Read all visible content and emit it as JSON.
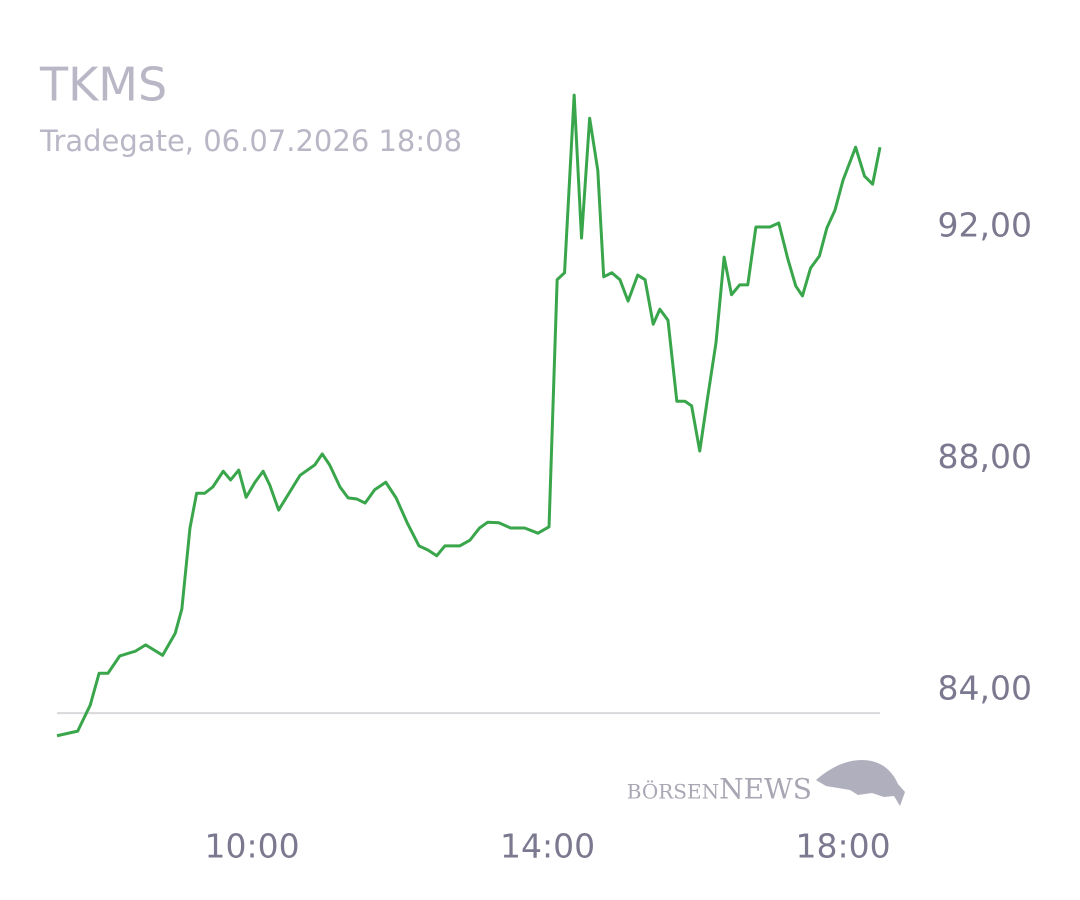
{
  "chart_data": {
    "type": "line",
    "title": "TKMS",
    "subtitle": "Tradegate, 06.07.2026 18:08",
    "watermark": "börsenNEWS",
    "color": "#3aa64c",
    "x": [
      7.36,
      7.64,
      7.81,
      7.93,
      8.05,
      8.21,
      8.42,
      8.56,
      8.79,
      8.96,
      9.05,
      9.16,
      9.25,
      9.36,
      9.47,
      9.61,
      9.71,
      9.82,
      9.92,
      10.04,
      10.15,
      10.24,
      10.36,
      10.5,
      10.65,
      10.85,
      10.95,
      11.05,
      11.19,
      11.3,
      11.42,
      11.53,
      11.66,
      11.81,
      11.95,
      12.1,
      12.26,
      12.38,
      12.5,
      12.61,
      12.81,
      12.95,
      13.08,
      13.19,
      13.34,
      13.5,
      13.69,
      13.87,
      14.02,
      14.13,
      14.23,
      14.36,
      14.46,
      14.57,
      14.68,
      14.76,
      14.87,
      14.98,
      15.09,
      15.22,
      15.32,
      15.43,
      15.52,
      15.63,
      15.75,
      15.86,
      15.95,
      16.06,
      16.17,
      16.28,
      16.39,
      16.49,
      16.6,
      16.71,
      16.82,
      17.01,
      17.13,
      17.25,
      17.36,
      17.45,
      17.56,
      17.68,
      17.78,
      17.89,
      18.0,
      18.17,
      18.29,
      18.4,
      18.5
    ],
    "values": [
      83.21,
      83.29,
      83.74,
      84.29,
      84.29,
      84.59,
      84.67,
      84.78,
      84.6,
      84.98,
      85.4,
      86.8,
      87.4,
      87.4,
      87.51,
      87.78,
      87.63,
      87.8,
      87.33,
      87.59,
      87.78,
      87.54,
      87.11,
      87.4,
      87.71,
      87.89,
      88.08,
      87.89,
      87.51,
      87.32,
      87.3,
      87.23,
      87.46,
      87.59,
      87.32,
      86.89,
      86.49,
      86.42,
      86.32,
      86.49,
      86.49,
      86.59,
      86.8,
      86.9,
      86.89,
      86.8,
      86.8,
      86.71,
      86.82,
      91.09,
      91.21,
      94.28,
      91.81,
      93.88,
      92.98,
      91.14,
      91.21,
      91.09,
      90.72,
      91.17,
      91.09,
      90.32,
      90.58,
      90.39,
      88.99,
      88.99,
      88.91,
      88.13,
      89.08,
      90.0,
      91.48,
      90.83,
      91.0,
      91.0,
      92.0,
      92.0,
      92.07,
      91.46,
      90.98,
      90.81,
      91.29,
      91.5,
      91.98,
      92.29,
      92.81,
      93.38,
      92.88,
      92.74,
      93.38
    ],
    "reference_line": 83.6,
    "xlim": [
      7.36,
      18.5
    ],
    "xticks": [
      {
        "value": 10,
        "label": "10:00"
      },
      {
        "value": 14,
        "label": "14:00"
      },
      {
        "value": 18,
        "label": "18:00"
      }
    ],
    "ylim": [
      83,
      95
    ],
    "yticks": [
      {
        "value": 84,
        "label": "84,00"
      },
      {
        "value": 88,
        "label": "88,00"
      },
      {
        "value": 92,
        "label": "92,00"
      }
    ]
  }
}
